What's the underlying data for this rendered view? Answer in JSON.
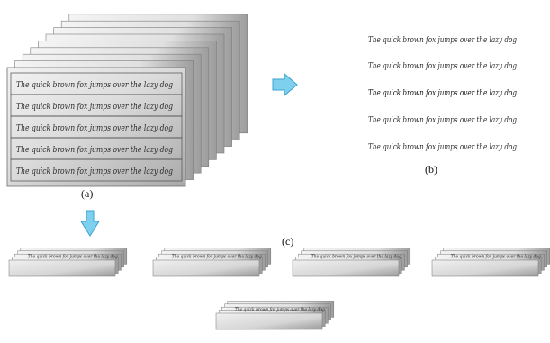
{
  "sentence": "The quick brown fox jumps over the lazy dog",
  "captions": {
    "a": "(a)",
    "b": "(b)",
    "c": "(c)"
  },
  "colors": {
    "arrow": "#7fd0ef",
    "arrow_stroke": "#3ba3cf",
    "paper": "#d9d9d9"
  },
  "icons": {
    "right_arrow": "right-arrow-icon",
    "down_arrow": "down-arrow-icon"
  },
  "counts": {
    "stack_a_sheets": 9,
    "lines_per_page": 5,
    "small_stacks": 5,
    "small_stack_sheets": 5
  }
}
